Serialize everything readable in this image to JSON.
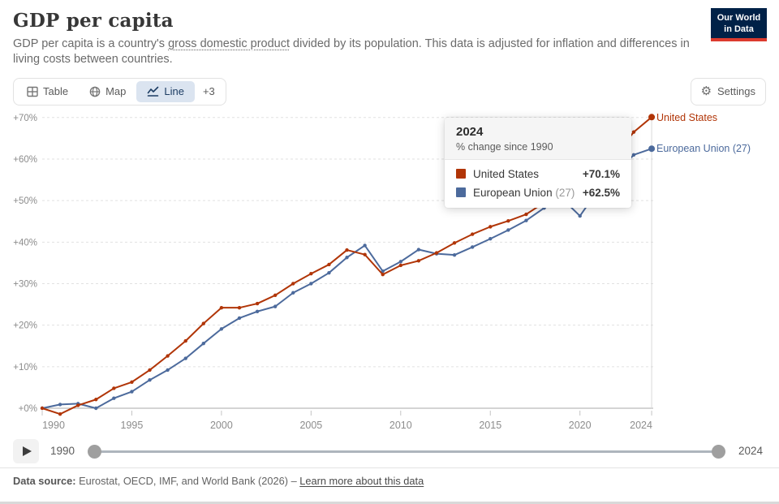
{
  "header": {
    "title": "GDP per capita",
    "subtitle_part1": "GDP per capita is a country's ",
    "subtitle_term": "gross domestic product",
    "subtitle_part2": " divided by its population. This data is adjusted for inflation and differences in living costs between countries.",
    "logo": {
      "line1": "Our World",
      "line2": "in Data",
      "bg_color": "#002147",
      "accent_color": "#dc3b2e"
    }
  },
  "tabs": {
    "table_label": "Table",
    "map_label": "Map",
    "line_label": "Line",
    "more_label": "+3",
    "active_tab": "Line",
    "active_bg": "#dbe4f0",
    "active_color": "#1d3d63"
  },
  "settings_label": "Settings",
  "chart_data": {
    "type": "line",
    "title": "GDP per capita",
    "ylabel": "% change since 1990",
    "xlabel": "",
    "grid": "dashed-horizontal",
    "ylim": [
      0,
      70
    ],
    "xlim": [
      1990,
      2024
    ],
    "years": [
      1990,
      1991,
      1992,
      1993,
      1994,
      1995,
      1996,
      1997,
      1998,
      1999,
      2000,
      2001,
      2002,
      2003,
      2004,
      2005,
      2006,
      2007,
      2008,
      2009,
      2010,
      2011,
      2012,
      2013,
      2014,
      2015,
      2016,
      2017,
      2018,
      2019,
      2020,
      2021,
      2022,
      2023,
      2024
    ],
    "series": [
      {
        "name": "European Union (27)",
        "color": "#4c6a9c",
        "values": [
          0,
          0.9,
          1.1,
          0,
          2.4,
          4,
          6.8,
          9.2,
          12,
          15.6,
          19.1,
          21.7,
          23.3,
          24.5,
          27.8,
          30,
          32.6,
          36.3,
          39.2,
          33,
          35.3,
          38.2,
          37.2,
          36.9,
          38.8,
          40.8,
          42.9,
          45.2,
          48.2,
          50.5,
          46.3,
          52.5,
          56.5,
          61,
          62.5
        ]
      },
      {
        "name": "United States",
        "color": "#b13507",
        "values": [
          0,
          -1.4,
          0.7,
          2.1,
          4.8,
          6.3,
          9.2,
          12.6,
          16.2,
          20.4,
          24.2,
          24.2,
          25.2,
          27.2,
          30,
          32.4,
          34.6,
          38.1,
          37,
          32.2,
          34.4,
          35.5,
          37.4,
          39.8,
          41.9,
          43.7,
          45.1,
          46.7,
          49.5,
          52.5,
          49,
          56.5,
          61,
          66.5,
          70.1
        ]
      }
    ],
    "y_ticks": [
      {
        "value": 0,
        "label": "+0%"
      },
      {
        "value": 10,
        "label": "+10%"
      },
      {
        "value": 20,
        "label": "+20%"
      },
      {
        "value": 30,
        "label": "+30%"
      },
      {
        "value": 40,
        "label": "+40%"
      },
      {
        "value": 50,
        "label": "+50%"
      },
      {
        "value": 60,
        "label": "+60%"
      },
      {
        "value": 70,
        "label": "+70%"
      }
    ],
    "x_ticks": [
      {
        "year": 1990,
        "label": "1990",
        "dx": 14
      },
      {
        "year": 1995,
        "label": "1995",
        "dx": 0
      },
      {
        "year": 2000,
        "label": "2000",
        "dx": 0
      },
      {
        "year": 2005,
        "label": "2005",
        "dx": 0
      },
      {
        "year": 2010,
        "label": "2010",
        "dx": 0
      },
      {
        "year": 2015,
        "label": "2015",
        "dx": 0
      },
      {
        "year": 2020,
        "label": "2020",
        "dx": 0
      },
      {
        "year": 2024,
        "label": "2024",
        "dx": -13
      }
    ],
    "legend_position": "end-of-line-labels",
    "hover_year": 2024
  },
  "end_labels": {
    "us": "United States",
    "eu": "European Union (27)"
  },
  "tooltip": {
    "year": "2024",
    "subtitle": "% change since 1990",
    "rows": [
      {
        "name": "United States",
        "paren": "",
        "value": "+70.1%",
        "color": "#b13507"
      },
      {
        "name": "European Union",
        "paren": "(27)",
        "value": "+62.5%",
        "color": "#4c6a9c"
      }
    ]
  },
  "timeline": {
    "start_year": "1990",
    "end_year": "2024"
  },
  "footer": {
    "source_label": "Data source:",
    "source_text": " Eurostat, OECD, IMF, and World Bank (2026) – ",
    "link_text": "Learn more about this data"
  }
}
